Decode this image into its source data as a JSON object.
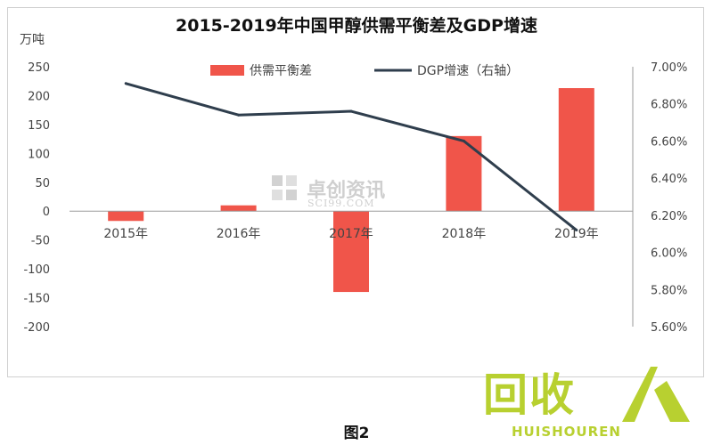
{
  "chart_data": {
    "type": "bar+line",
    "title": "2015-2019年中国甲醇供需平衡差及GDP增速",
    "unit_left": "万吨",
    "categories": [
      "2015年",
      "2016年",
      "2017年",
      "2018年",
      "2019年"
    ],
    "series": [
      {
        "name": "供需平衡差",
        "type": "bar",
        "axis": "left",
        "color": "#f0554a",
        "values": [
          -17,
          10,
          -140,
          130,
          213
        ]
      },
      {
        "name": "DGP增速（右轴）",
        "type": "line",
        "axis": "right",
        "color": "#2f3e4d",
        "values": [
          6.91,
          6.74,
          6.76,
          6.6,
          6.12
        ]
      }
    ],
    "y_left": {
      "min": -200,
      "max": 250,
      "ticks": [
        250,
        200,
        150,
        100,
        50,
        0,
        -50,
        -100,
        -150,
        -200
      ]
    },
    "y_right": {
      "min": 5.6,
      "max": 7.0,
      "ticks": [
        "7.00%",
        "6.80%",
        "6.60%",
        "6.40%",
        "6.20%",
        "6.00%",
        "5.80%",
        "5.60%"
      ]
    },
    "legend_position": "top",
    "grid": false
  },
  "watermark": {
    "cn": "卓创资讯",
    "en": "SCI99.COM"
  },
  "caption": "图2",
  "logo": {
    "big": "回收",
    "small": "HUISHOUREN"
  }
}
